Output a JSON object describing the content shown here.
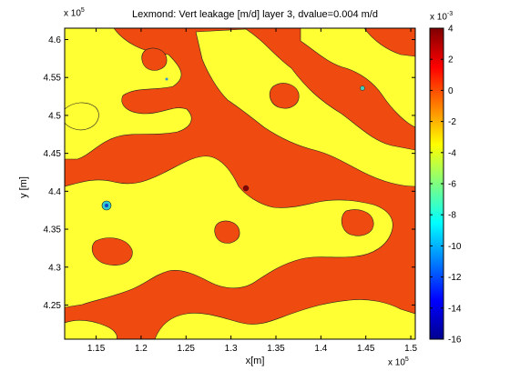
{
  "chart_data": {
    "type": "heatmap",
    "title": "Lexmond: Vert leakage [m/d] layer 3, dvalue=0.004 m/d",
    "xlabel": "x[m]",
    "ylabel": "y [m]",
    "x_exponent_label": "x 10",
    "x_exponent_power": "5",
    "y_exponent_label": "x 10",
    "y_exponent_power": "5",
    "colorbar_exponent_label": "x 10",
    "colorbar_exponent_power": "-3",
    "xlim": [
      1.115,
      1.505
    ],
    "ylim": [
      4.205,
      4.615
    ],
    "x_ticks": [
      "1.15",
      "1.2",
      "1.25",
      "1.3",
      "1.35",
      "1.4",
      "1.45",
      "1.5"
    ],
    "x_tick_values": [
      1.15,
      1.2,
      1.25,
      1.3,
      1.35,
      1.4,
      1.45,
      1.5
    ],
    "y_ticks": [
      "4.25",
      "4.3",
      "4.35",
      "4.4",
      "4.45",
      "4.5",
      "4.55",
      "4.6"
    ],
    "y_tick_values": [
      4.25,
      4.3,
      4.35,
      4.4,
      4.45,
      4.5,
      4.55,
      4.6
    ],
    "colorbar_ticks": [
      "4",
      "2",
      "0",
      "-2",
      "-4",
      "-6",
      "-8",
      "-10",
      "-12",
      "-14",
      "-16"
    ],
    "colorbar_tick_values": [
      4,
      2,
      0,
      -2,
      -4,
      -6,
      -8,
      -10,
      -12,
      -14,
      -16
    ],
    "colorbar_range": [
      -16,
      4
    ],
    "colormap": "jet",
    "dominant_colors": {
      "positive_region": "#ef4a10",
      "negative_region": "#ffff33"
    }
  }
}
